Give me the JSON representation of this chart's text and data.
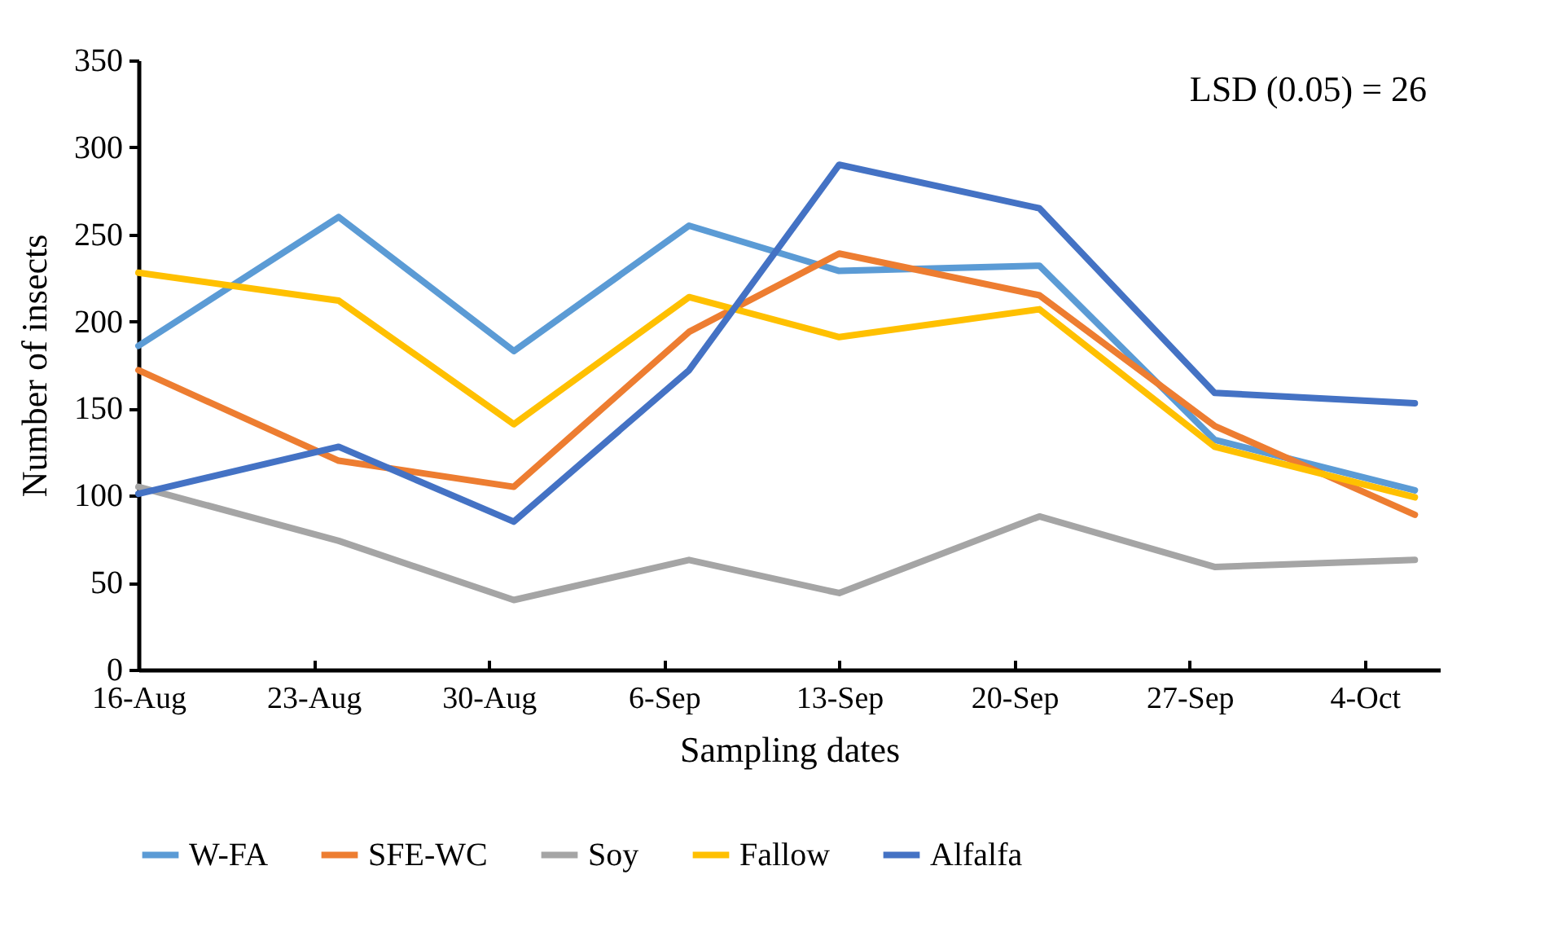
{
  "chart_data": {
    "type": "line",
    "xlabel": "Sampling dates",
    "ylabel": "Number of insects",
    "annotations": [
      "LSD (0.05) = 26"
    ],
    "x": [
      "--08-16",
      "--08-24",
      "--08-31",
      "--09-07",
      "--09-13",
      "--09-21",
      "--09-28",
      "--10-06"
    ],
    "series": [
      {
        "name": "W-FA",
        "color": "#5b9bd5",
        "values": [
          186,
          260,
          183,
          255,
          229,
          232,
          132,
          103
        ]
      },
      {
        "name": "SFE-WC",
        "color": "#ed7d31",
        "values": [
          172,
          120,
          105,
          194,
          239,
          215,
          140,
          89
        ]
      },
      {
        "name": "Soy",
        "color": "#a5a5a5",
        "values": [
          105,
          74,
          40,
          63,
          44,
          88,
          59,
          63
        ]
      },
      {
        "name": "Fallow",
        "color": "#ffc000",
        "values": [
          228,
          212,
          141,
          214,
          191,
          207,
          128,
          99
        ]
      },
      {
        "name": "Alfalfa",
        "color": "#4472c4",
        "values": [
          101,
          128,
          85,
          172,
          290,
          265,
          159,
          153
        ]
      }
    ],
    "xlim": [
      "--08-16",
      "--10-07"
    ],
    "xticks": [
      {
        "value": "--08-16",
        "label": "16-Aug"
      },
      {
        "value": "--08-23",
        "label": "23-Aug"
      },
      {
        "value": "--08-30",
        "label": "30-Aug"
      },
      {
        "value": "--09-06",
        "label": "6-Sep"
      },
      {
        "value": "--09-13",
        "label": "13-Sep"
      },
      {
        "value": "--09-20",
        "label": "20-Sep"
      },
      {
        "value": "--09-27",
        "label": "27-Sep"
      },
      {
        "value": "--10-04",
        "label": "4-Oct"
      }
    ],
    "ylim": [
      0,
      350
    ],
    "yticks": [
      0,
      50,
      100,
      150,
      200,
      250,
      300,
      350
    ],
    "grid": false,
    "legend": "bottom",
    "marker": "none",
    "line_style": "solid"
  }
}
